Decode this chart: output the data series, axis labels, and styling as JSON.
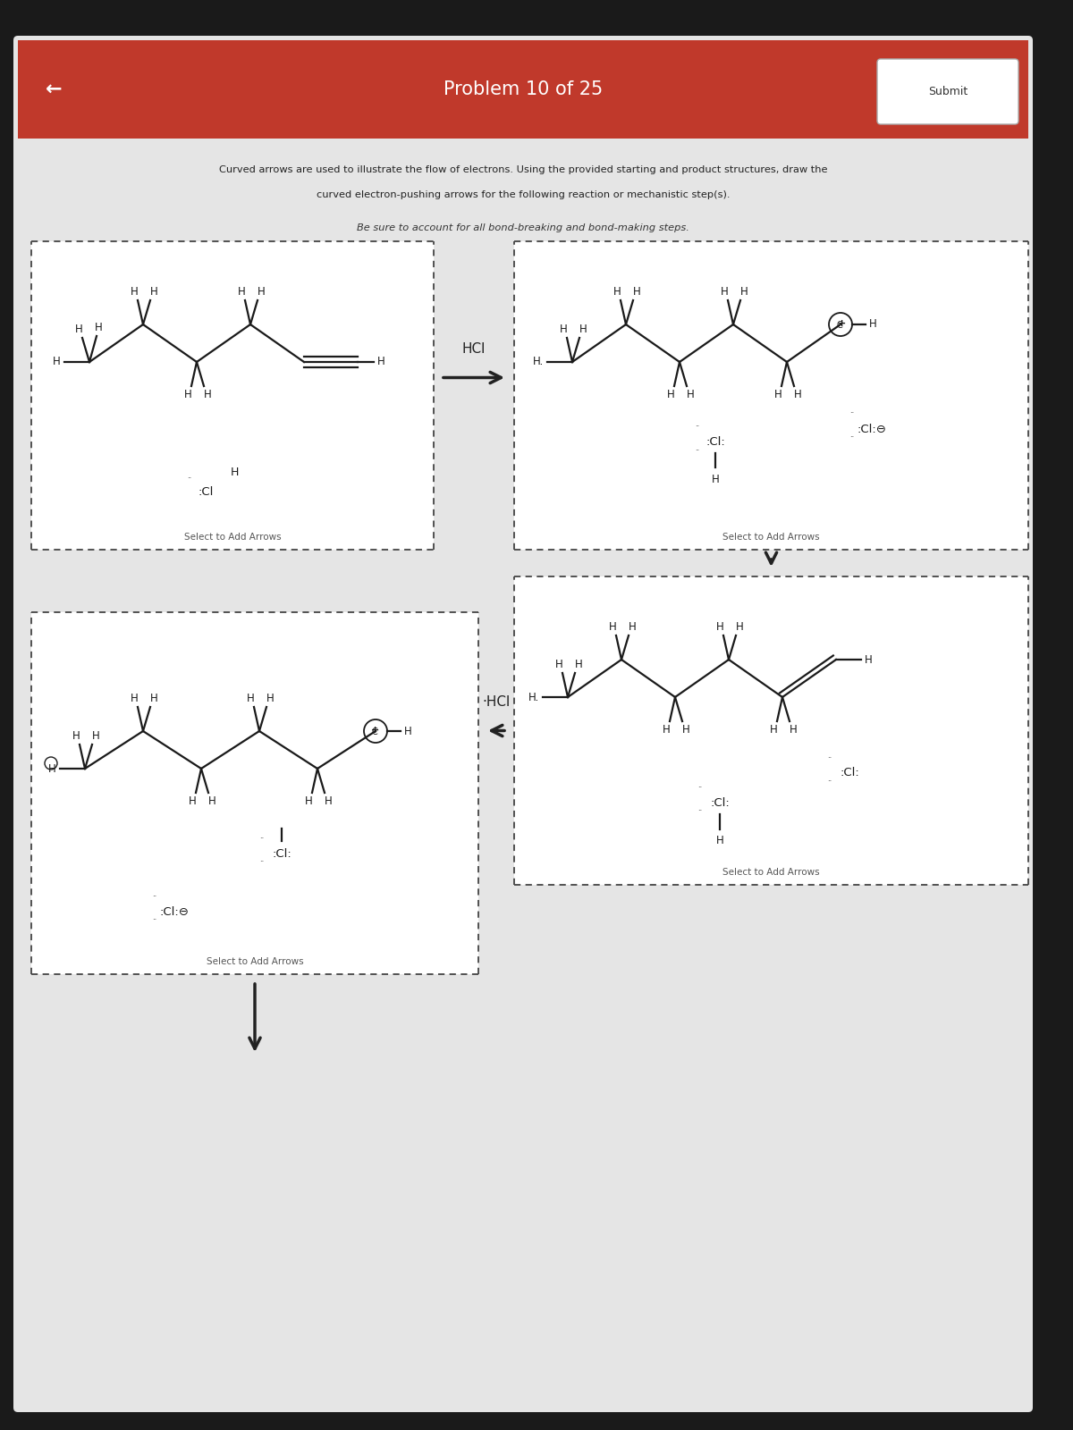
{
  "title": "Problem 10 of 25",
  "submit_text": "Submit",
  "back_arrow": "←",
  "header_color": "#c0392b",
  "header_text_color": "#ffffff",
  "bg_color": "#1a1a1a",
  "content_bg": "#e8e8e8",
  "instruction1": "Curved arrows are used to illustrate the flow of electrons. Using the provided starting and product structures, draw the",
  "instruction2": "curved electron-pushing arrows for the following reaction or mechanistic step(s).",
  "instruction3": "Be sure to account for all bond-breaking and bond-making steps.",
  "hcl_label": "HCl",
  "select_text": "Select to Add Arrows",
  "box_border_color": "#444444",
  "text_color": "#222222",
  "arrow_color": "#222222"
}
